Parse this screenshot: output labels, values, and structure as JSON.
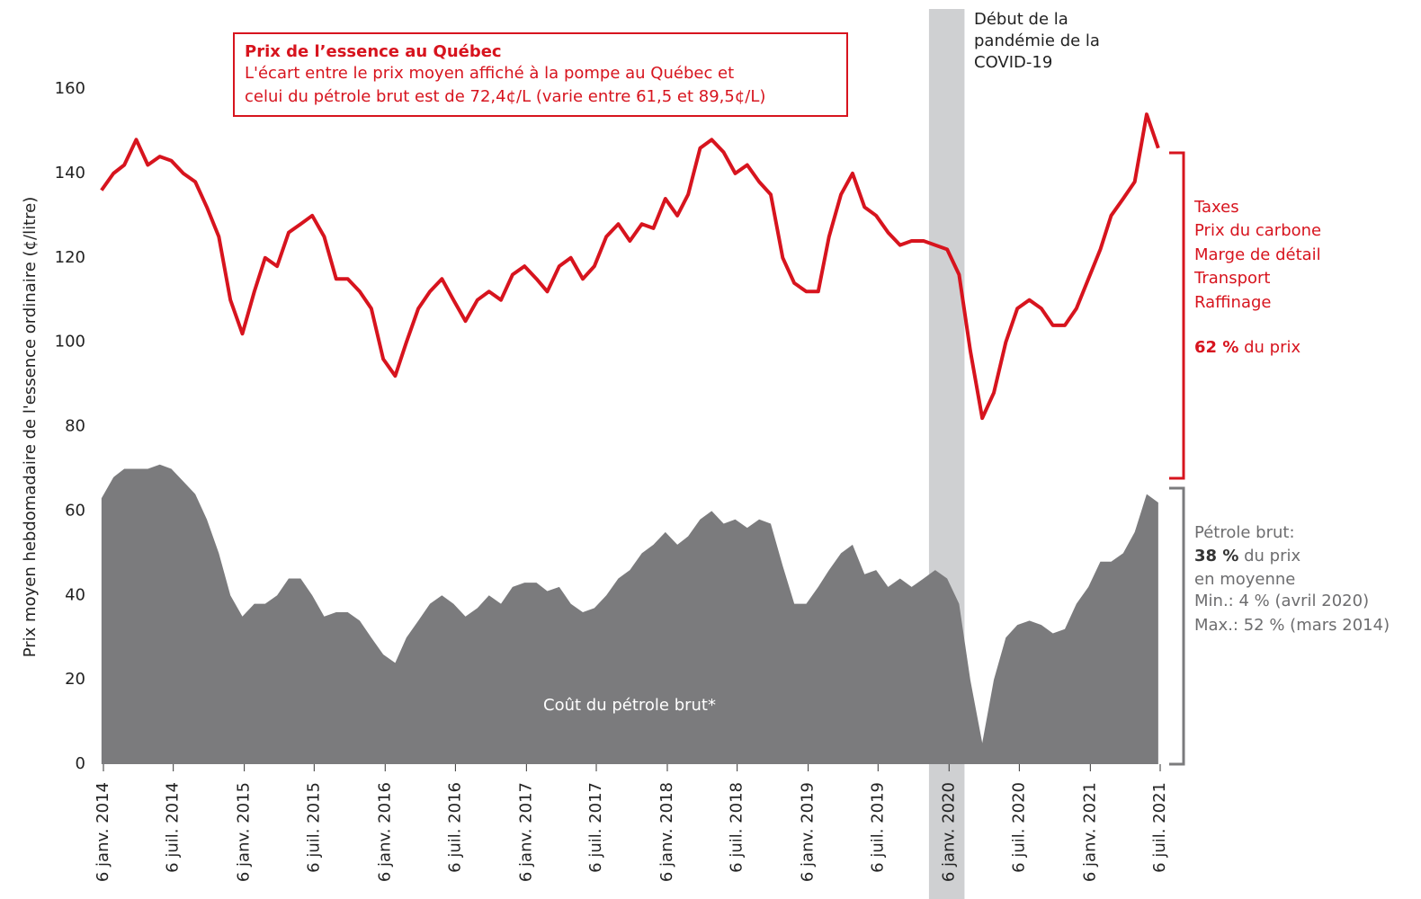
{
  "chart_data": {
    "type": "line-area",
    "y_label": "Prix moyen hebdomadaire de l'essence ordinaire (¢/litre)",
    "x": [
      "2014-01",
      "2014-02",
      "2014-03",
      "2014-04",
      "2014-05",
      "2014-06",
      "2014-07",
      "2014-08",
      "2014-09",
      "2014-10",
      "2014-11",
      "2014-12",
      "2015-01",
      "2015-02",
      "2015-03",
      "2015-04",
      "2015-05",
      "2015-06",
      "2015-07",
      "2015-08",
      "2015-09",
      "2015-10",
      "2015-11",
      "2015-12",
      "2016-01",
      "2016-02",
      "2016-03",
      "2016-04",
      "2016-05",
      "2016-06",
      "2016-07",
      "2016-08",
      "2016-09",
      "2016-10",
      "2016-11",
      "2016-12",
      "2017-01",
      "2017-02",
      "2017-03",
      "2017-04",
      "2017-05",
      "2017-06",
      "2017-07",
      "2017-08",
      "2017-09",
      "2017-10",
      "2017-11",
      "2017-12",
      "2018-01",
      "2018-02",
      "2018-03",
      "2018-04",
      "2018-05",
      "2018-06",
      "2018-07",
      "2018-08",
      "2018-09",
      "2018-10",
      "2018-11",
      "2018-12",
      "2019-01",
      "2019-02",
      "2019-03",
      "2019-04",
      "2019-05",
      "2019-06",
      "2019-07",
      "2019-08",
      "2019-09",
      "2019-10",
      "2019-11",
      "2019-12",
      "2020-01",
      "2020-02",
      "2020-03",
      "2020-04",
      "2020-05",
      "2020-06",
      "2020-07",
      "2020-08",
      "2020-09",
      "2020-10",
      "2020-11",
      "2020-12",
      "2021-01",
      "2021-02",
      "2021-03",
      "2021-04",
      "2021-05",
      "2021-06",
      "2021-07"
    ],
    "series": [
      {
        "name": "Prix de l’essence au Québec",
        "color": "#d7141e",
        "style": "line",
        "values": [
          136,
          140,
          142,
          148,
          142,
          144,
          143,
          140,
          138,
          132,
          125,
          110,
          102,
          112,
          120,
          118,
          126,
          128,
          130,
          125,
          115,
          115,
          112,
          108,
          96,
          92,
          100,
          108,
          112,
          115,
          110,
          105,
          110,
          112,
          110,
          116,
          118,
          115,
          112,
          118,
          120,
          115,
          118,
          125,
          128,
          124,
          128,
          127,
          134,
          130,
          135,
          146,
          148,
          145,
          140,
          142,
          138,
          135,
          120,
          114,
          112,
          112,
          125,
          135,
          140,
          132,
          130,
          126,
          123,
          124,
          124,
          123,
          122,
          116,
          98,
          82,
          88,
          100,
          108,
          110,
          108,
          104,
          104,
          108,
          115,
          122,
          130,
          134,
          138,
          154,
          146
        ]
      },
      {
        "name": "Coût du pétrole brut*",
        "color": "#7b7b7d",
        "style": "area",
        "values": [
          63,
          68,
          70,
          70,
          70,
          71,
          70,
          67,
          64,
          58,
          50,
          40,
          35,
          38,
          38,
          40,
          44,
          44,
          40,
          35,
          36,
          36,
          34,
          30,
          26,
          24,
          30,
          34,
          38,
          40,
          38,
          35,
          37,
          40,
          38,
          42,
          43,
          43,
          41,
          42,
          38,
          36,
          37,
          40,
          44,
          46,
          50,
          52,
          55,
          52,
          54,
          58,
          60,
          57,
          58,
          56,
          58,
          57,
          47,
          38,
          38,
          42,
          46,
          50,
          52,
          45,
          46,
          42,
          44,
          42,
          44,
          46,
          44,
          38,
          20,
          5,
          20,
          30,
          33,
          34,
          33,
          31,
          32,
          38,
          42,
          48,
          48,
          50,
          55,
          64,
          62
        ]
      }
    ],
    "ylim": [
      0,
      160
    ],
    "yticks": [
      0,
      20,
      40,
      60,
      80,
      100,
      120,
      140,
      160
    ],
    "xlim": [
      "2014-01-06",
      "2021-07-06"
    ],
    "xticks": [
      {
        "value": "2014-01-06",
        "label": "6 janv. 2014"
      },
      {
        "value": "2014-07-06",
        "label": "6 juil. 2014"
      },
      {
        "value": "2015-01-06",
        "label": "6 janv. 2015"
      },
      {
        "value": "2015-07-06",
        "label": "6 juil. 2015"
      },
      {
        "value": "2016-01-06",
        "label": "6 janv. 2016"
      },
      {
        "value": "2016-07-06",
        "label": "6 juil. 2016"
      },
      {
        "value": "2017-01-06",
        "label": "6 janv. 2017"
      },
      {
        "value": "2017-07-06",
        "label": "6 juil. 2017"
      },
      {
        "value": "2018-01-06",
        "label": "6 janv. 2018"
      },
      {
        "value": "2018-07-06",
        "label": "6 juil. 2018"
      },
      {
        "value": "2019-01-06",
        "label": "6 janv. 2019"
      },
      {
        "value": "2019-07-06",
        "label": "6 juil. 2019"
      },
      {
        "value": "2020-01-06",
        "label": "6 janv. 2020"
      },
      {
        "value": "2020-07-06",
        "label": "6 juil. 2020"
      },
      {
        "value": "2021-01-06",
        "label": "6 janv. 2021"
      },
      {
        "value": "2021-07-06",
        "label": "6 juil. 2021"
      }
    ],
    "shade": [
      "2019-11-15",
      "2020-02-15"
    ],
    "box_lines": [
      "L'écart entre le prix moyen affiché à la pompe au Québec et",
      "celui du pétrole brut est de 72,4¢/L (varie entre 61,5 et 89,5¢/L)"
    ],
    "covid_note": [
      "Début de la",
      "pandémie de la",
      "COVID-19"
    ],
    "red_note": [
      "Taxes",
      "Prix du carbone",
      "Marge de détail",
      "Transport",
      "Raffinage"
    ],
    "red_share": {
      "bold": "62 %",
      "text": " du prix"
    },
    "gray_note_title": "Pétrole brut:",
    "gray_share": {
      "bold": "38 %",
      "text": " du prix"
    },
    "gray_note": [
      "en moyenne",
      "Min.: 4 % (avril 2020)",
      "Max.: 52 % (mars 2014)"
    ]
  }
}
